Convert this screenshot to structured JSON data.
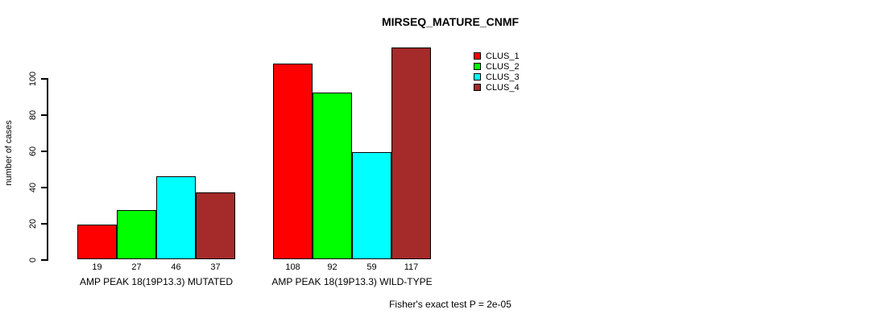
{
  "title": "MIRSEQ_MATURE_CNMF",
  "footer_note": "Fisher's exact test P = 2e-05",
  "chart_data": {
    "type": "bar",
    "title": "MIRSEQ_MATURE_CNMF",
    "xlabel": "",
    "ylabel": "number of cases",
    "categories": [
      "AMP PEAK 18(19P13.3) MUTATED",
      "AMP PEAK 18(19P13.3) WILD-TYPE"
    ],
    "series": [
      {
        "name": "CLUS_1",
        "color": "#FF0000",
        "values": [
          19,
          108
        ]
      },
      {
        "name": "CLUS_2",
        "color": "#00FF00",
        "values": [
          27,
          92
        ]
      },
      {
        "name": "CLUS_3",
        "color": "#00FFFF",
        "values": [
          46,
          59
        ]
      },
      {
        "name": "CLUS_4",
        "color": "#A52A2A",
        "values": [
          37,
          117
        ]
      }
    ],
    "bar_value_labels": [
      [
        19,
        27,
        46,
        37
      ],
      [
        108,
        92,
        59,
        117
      ]
    ],
    "yticks": [
      0,
      20,
      40,
      60,
      80,
      100
    ],
    "ylim": [
      0,
      117
    ],
    "grid": false,
    "legend_position": "top-right",
    "legend_entries": [
      "CLUS_1",
      "CLUS_2",
      "CLUS_3",
      "CLUS_4"
    ],
    "annotation": "Fisher's exact test P = 2e-05"
  }
}
